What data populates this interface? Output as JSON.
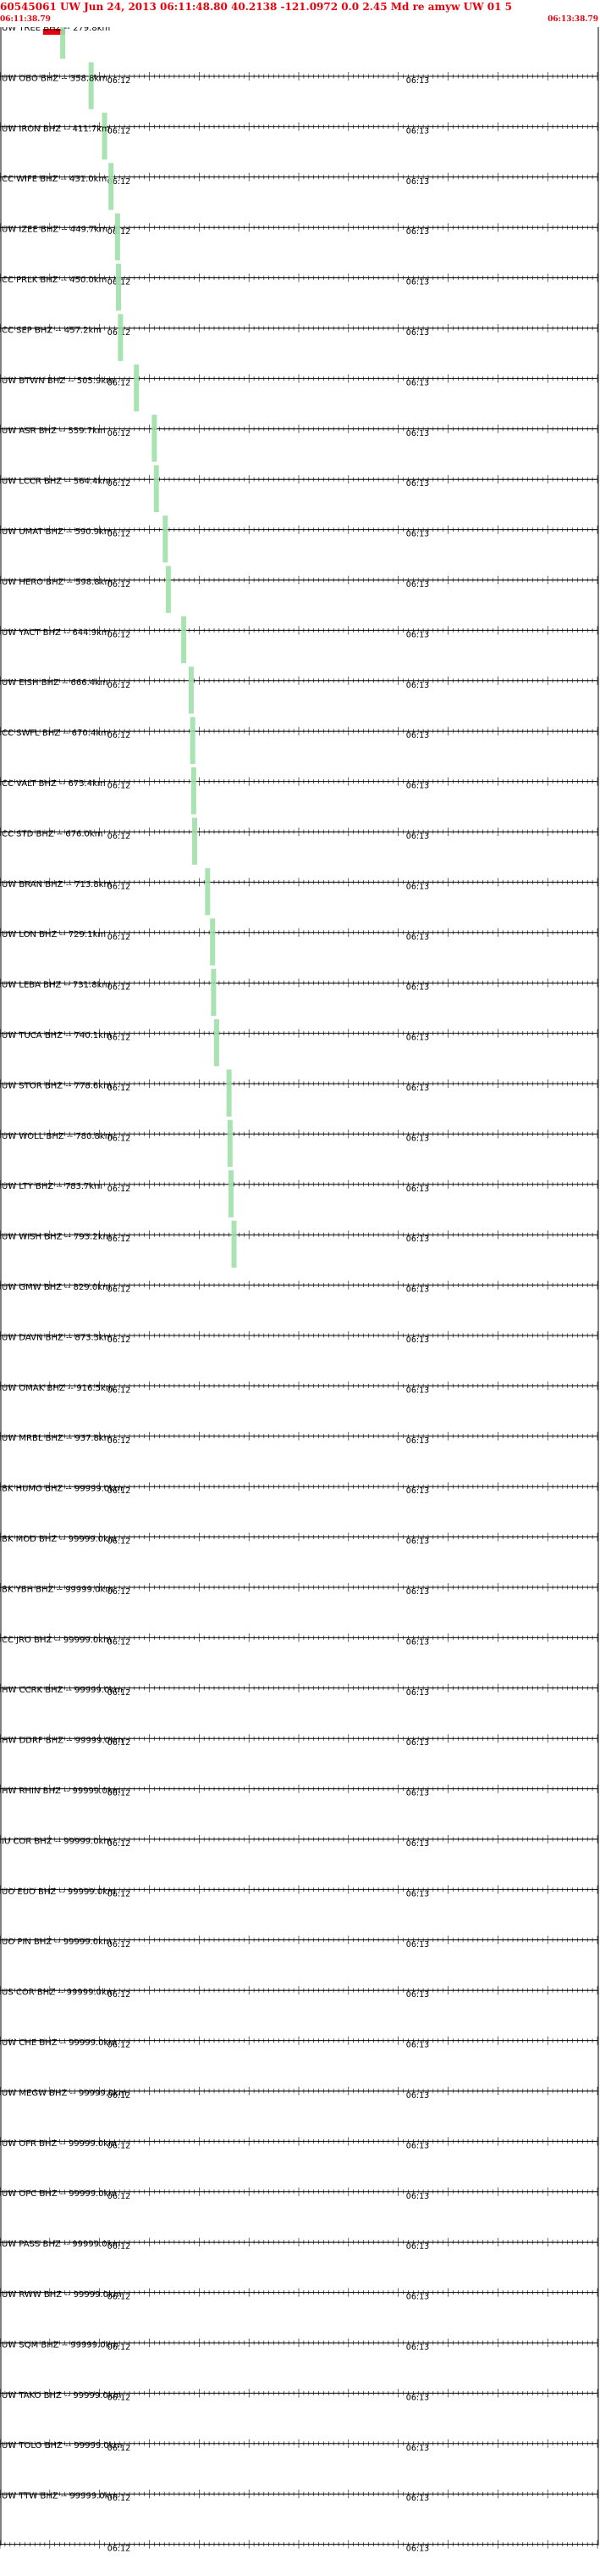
{
  "header": {
    "title": "60545061 UW Jun 24, 2013 06:11:48.80   40.2138 -121.0972  0.0 2.45 Md re amyw UW 01   5",
    "start_time": "06:11:38.79",
    "end_time": "06:13:38.79"
  },
  "colors": {
    "trace": "#1a0f5e",
    "pick": "#9fe0a8",
    "marker": "#e8000b",
    "text_red": "#e8000b",
    "axis": "#000000"
  },
  "chart_data": {
    "type": "line",
    "title": "60545061 UW Jun 24, 2013 06:11:48.80   40.2138 -121.0972  0.0 2.45 Md re amyw UW 01   5",
    "time_range": [
      "06:11:38.79",
      "06:13:38.79"
    ],
    "tick_labels": [
      "06:12",
      "06:13"
    ],
    "tick_times_s": [
      21.21,
      81.21
    ],
    "duration_s": 120,
    "origin_marker_s": 10.0,
    "grid": false,
    "stations": [
      {
        "label": "UW TREE BHZ -- 279.8km",
        "pick_s": 12.6,
        "amp": 0.8,
        "style": "wave"
      },
      {
        "label": "UW OBO BHZ -- 358.8km",
        "pick_s": 18.3,
        "amp": 0.6,
        "style": "wave"
      },
      {
        "label": "UW IRON BHZ -- 411.7km",
        "pick_s": 21.0,
        "amp": 0.5,
        "style": "wave"
      },
      {
        "label": "CC WIFE BHZ -- 431.0km",
        "pick_s": 22.3,
        "amp": 0.0,
        "style": "flat"
      },
      {
        "label": "UW IZEE BHZ -- 449.7km",
        "pick_s": 23.6,
        "amp": 0.8,
        "style": "wave"
      },
      {
        "label": "CC PRLK BHZ -- 450.0km",
        "pick_s": 23.8,
        "amp": 0.5,
        "style": "wave"
      },
      {
        "label": "CC SEP BHZ -- 457.2km",
        "pick_s": 24.2,
        "amp": 0.6,
        "style": "noisy"
      },
      {
        "label": "UW BTWN BHZ -- 505.9km",
        "pick_s": 27.4,
        "amp": 0.7,
        "style": "wave"
      },
      {
        "label": "UW ASR BHZ -- 559.7km",
        "pick_s": 31.0,
        "amp": 0.7,
        "style": "wave"
      },
      {
        "label": "UW LCCR BHZ -- 564.4km",
        "pick_s": 31.4,
        "amp": 0.0,
        "style": "flat"
      },
      {
        "label": "UW UMAT BHZ -- 590.9km",
        "pick_s": 33.2,
        "amp": 0.8,
        "style": "wave"
      },
      {
        "label": "UW HERO BHZ -- 598.8km",
        "pick_s": 33.8,
        "amp": 0.0,
        "style": "flat"
      },
      {
        "label": "UW YACT BHZ -- 644.9km",
        "pick_s": 36.9,
        "amp": 0.0,
        "style": "flat"
      },
      {
        "label": "UW EISH BHZ -- 666.4km",
        "pick_s": 38.4,
        "amp": 0.0,
        "style": "flat"
      },
      {
        "label": "CC SWFL BHZ -- 670.4km",
        "pick_s": 38.7,
        "amp": 0.04,
        "style": "spike"
      },
      {
        "label": "CC VALT BHZ -- 673.4km",
        "pick_s": 38.9,
        "amp": 0.6,
        "style": "noisy"
      },
      {
        "label": "CC STD BHZ -- 676.0km",
        "pick_s": 39.1,
        "amp": 0.5,
        "style": "wave"
      },
      {
        "label": "UW BRAN BHZ -- 713.8km",
        "pick_s": 41.7,
        "amp": 0.6,
        "style": "noisy"
      },
      {
        "label": "UW LON BHZ -- 729.1km",
        "pick_s": 42.7,
        "amp": 0.0,
        "style": "flat"
      },
      {
        "label": "UW LEBA BHZ -- 731.8km",
        "pick_s": 42.9,
        "amp": 0.0,
        "style": "flat"
      },
      {
        "label": "UW TUCA BHZ -- 740.1km",
        "pick_s": 43.5,
        "amp": 0.6,
        "style": "noisy"
      },
      {
        "label": "UW STOR BHZ -- 778.6km",
        "pick_s": 46.0,
        "amp": 0.8,
        "style": "wave"
      },
      {
        "label": "UW WOLL BHZ -- 780.8km",
        "pick_s": 46.2,
        "amp": 0.6,
        "style": "noisy"
      },
      {
        "label": "UW LTY BHZ -- 783.7km",
        "pick_s": 46.4,
        "amp": 0.7,
        "style": "gap"
      },
      {
        "label": "UW WISH BHZ -- 793.2km",
        "pick_s": 47.0,
        "amp": 0.8,
        "style": "wave"
      },
      {
        "label": "UW GMW BHZ -- 829.0km",
        "pick_s": null,
        "amp": 0.6,
        "style": "wave"
      },
      {
        "label": "UW DAVN BHZ -- 873.3km",
        "pick_s": null,
        "amp": 0.5,
        "style": "noisy"
      },
      {
        "label": "UW OMAK BHZ -- 916.5km",
        "pick_s": null,
        "amp": 0.0,
        "style": "flat"
      },
      {
        "label": "UW MRBL BHZ -- 937.8km",
        "pick_s": null,
        "amp": 0.6,
        "style": "noisy"
      },
      {
        "label": "BK HUMO BHZ -- 99999.0km",
        "pick_s": null,
        "amp": 0.0,
        "style": "flat"
      },
      {
        "label": "BK MOD BHZ -- 99999.0km",
        "pick_s": null,
        "amp": 0.0,
        "style": "flat"
      },
      {
        "label": "BK YBH BHZ -- 99999.0km",
        "pick_s": null,
        "amp": 0.0,
        "style": "flat"
      },
      {
        "label": "CC JRO BHZ -- 99999.0km",
        "pick_s": null,
        "amp": 0.0,
        "style": "flat"
      },
      {
        "label": "HW CCRK BHZ -- 99999.0km",
        "pick_s": null,
        "amp": 0.0,
        "style": "flat"
      },
      {
        "label": "HW DDRF BHZ -- 99999.0km",
        "pick_s": null,
        "amp": 0.0,
        "style": "flat"
      },
      {
        "label": "HW RHIN BHZ -- 99999.0km",
        "pick_s": null,
        "amp": 0.0,
        "style": "flat"
      },
      {
        "label": "IU COR BHZ -- 99999.0km",
        "pick_s": null,
        "amp": 0.0,
        "style": "flat"
      },
      {
        "label": "UO EUO BHZ -- 99999.0km",
        "pick_s": null,
        "amp": 0.0,
        "style": "flat"
      },
      {
        "label": "UO PIN BHZ -- 99999.0km",
        "pick_s": null,
        "amp": 0.0,
        "style": "flat"
      },
      {
        "label": "US COR BHZ -- 99999.0km",
        "pick_s": null,
        "amp": 0.0,
        "style": "flat"
      },
      {
        "label": "UW CHE BHZ -- 99999.0km",
        "pick_s": null,
        "amp": 0.0,
        "style": "flat"
      },
      {
        "label": "UW MEGW BHZ -- 99999.0km",
        "pick_s": null,
        "amp": 0.0,
        "style": "flat"
      },
      {
        "label": "UW OFR BHZ -- 99999.0km",
        "pick_s": null,
        "amp": 0.0,
        "style": "flat"
      },
      {
        "label": "UW OPC BHZ -- 99999.0km",
        "pick_s": null,
        "amp": 0.0,
        "style": "flat"
      },
      {
        "label": "UW PASS BHZ -- 99999.0km",
        "pick_s": null,
        "amp": 0.0,
        "style": "flat"
      },
      {
        "label": "UW RWW BHZ -- 99999.0km",
        "pick_s": null,
        "amp": 0.0,
        "style": "flat"
      },
      {
        "label": "UW SQM BHZ -- 99999.0km",
        "pick_s": null,
        "amp": 0.0,
        "style": "flat"
      },
      {
        "label": "UW TAKO BHZ -- 99999.0km",
        "pick_s": null,
        "amp": 0.0,
        "style": "flat"
      },
      {
        "label": "UW TOLO BHZ -- 99999.0km",
        "pick_s": null,
        "amp": 0.0,
        "style": "flat"
      },
      {
        "label": "UW TTW BHZ -- 99999.0km",
        "pick_s": null,
        "amp": 0.0,
        "style": "flat"
      }
    ]
  }
}
